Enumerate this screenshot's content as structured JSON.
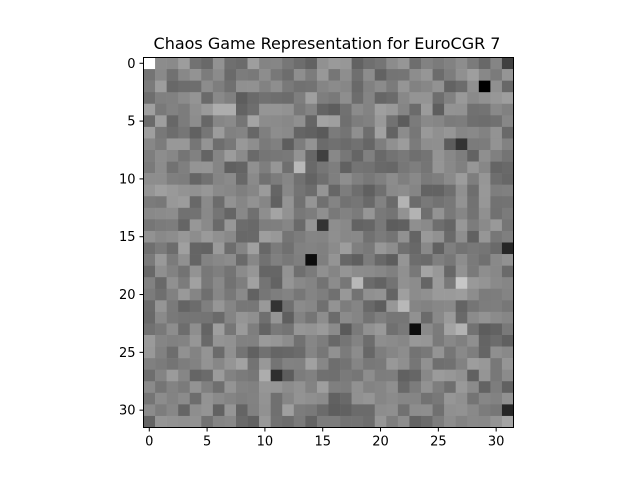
{
  "chart_data": {
    "type": "heatmap",
    "title": "Chaos Game Representation for EuroCGR 7",
    "xlabel": "",
    "ylabel": "",
    "colormap": "gray",
    "shape": [
      32,
      32
    ],
    "xlim": [
      -0.5,
      31.5
    ],
    "ylim": [
      31.5,
      -0.5
    ],
    "x_ticks": [
      0,
      5,
      10,
      15,
      20,
      25,
      30
    ],
    "y_ticks": [
      0,
      5,
      10,
      15,
      20,
      25,
      30
    ],
    "x_tick_labels": [
      "0",
      "5",
      "10",
      "15",
      "20",
      "25",
      "30"
    ],
    "y_tick_labels": [
      "0",
      "5",
      "10",
      "15",
      "20",
      "25",
      "30"
    ],
    "grid": false,
    "legend": false,
    "background_gray": 0.5,
    "extremes": [
      {
        "row": 0,
        "col": 0,
        "gray": 1.0
      },
      {
        "row": 0,
        "col": 31,
        "gray": 0.25
      },
      {
        "row": 2,
        "col": 29,
        "gray": 0.0
      },
      {
        "row": 7,
        "col": 27,
        "gray": 0.2
      },
      {
        "row": 16,
        "col": 31,
        "gray": 0.15
      },
      {
        "row": 17,
        "col": 14,
        "gray": 0.05
      },
      {
        "row": 19,
        "col": 27,
        "gray": 0.78
      },
      {
        "row": 23,
        "col": 23,
        "gray": 0.05
      },
      {
        "row": 27,
        "col": 11,
        "gray": 0.18
      },
      {
        "row": 30,
        "col": 31,
        "gray": 0.15
      },
      {
        "row": 9,
        "col": 13,
        "gray": 0.72
      },
      {
        "row": 19,
        "col": 18,
        "gray": 0.72
      },
      {
        "row": 21,
        "col": 22,
        "gray": 0.72
      },
      {
        "row": 21,
        "col": 11,
        "gray": 0.2
      },
      {
        "row": 14,
        "col": 15,
        "gray": 0.2
      },
      {
        "row": 8,
        "col": 15,
        "gray": 0.25
      },
      {
        "row": 4,
        "col": 7,
        "gray": 0.68
      },
      {
        "row": 4,
        "col": 6,
        "gray": 0.68
      },
      {
        "row": 27,
        "col": 10,
        "gray": 0.68
      },
      {
        "row": 12,
        "col": 22,
        "gray": 0.7
      },
      {
        "row": 13,
        "col": 23,
        "gray": 0.7
      },
      {
        "row": 23,
        "col": 27,
        "gray": 0.7
      }
    ]
  }
}
